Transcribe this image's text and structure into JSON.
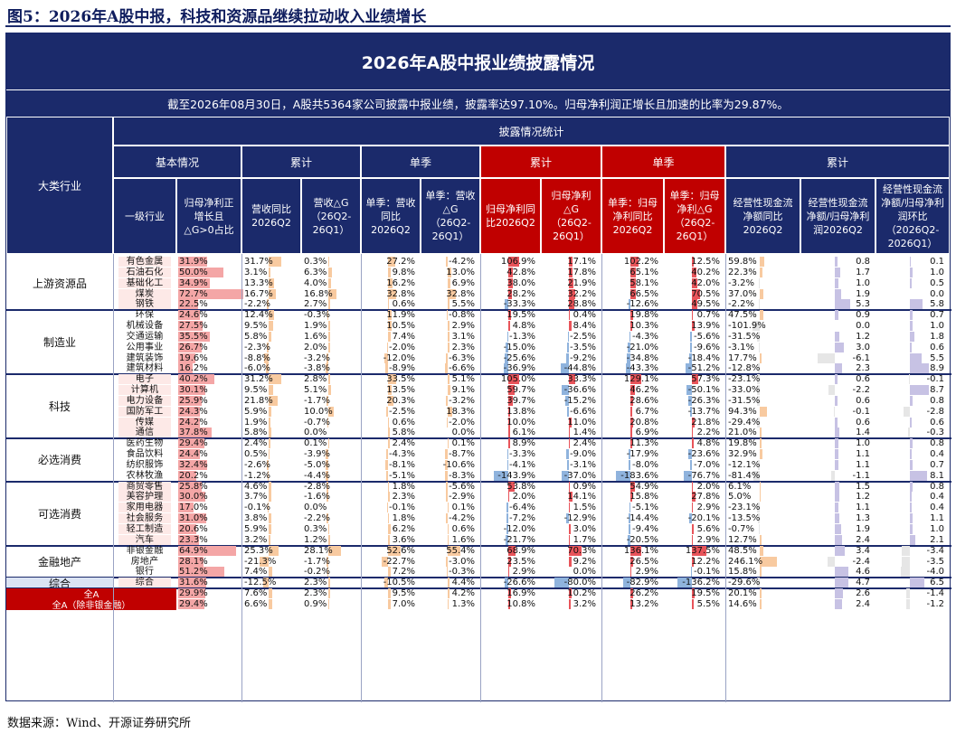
{
  "figure_title": "图5：2026年A股中报，科技和资源品继续拉动收入业绩增长",
  "board_title": "2026年A股中报业绩披露情况",
  "summary": "截至2026年08月30日，A股共5364家公司披露中报业绩，披露率达97.10%。归母净利润正增长且加速的比率为29.87%。",
  "source": "数据来源：Wind、开源证券研究所",
  "headers": {
    "category": "大类行业",
    "stats": "披露情况统计",
    "basic": "基本情况",
    "cum1": "累计",
    "single1": "单季",
    "cum2": "累计",
    "single2": "单季",
    "cum3": "累计",
    "cols": [
      "一级行业",
      "归母净利正增长且△G>0占比",
      "营收同比2026Q2",
      "营收△G（26Q2-26Q1）",
      "单季：营收同比2026Q2",
      "单季：营收△G（26Q2-26Q1）",
      "归母净利同比2026Q2",
      "归母净利△G（26Q2-26Q1）",
      "单季：归母净利同比2026Q2",
      "单季：归母净利△G（26Q2-26Q1）",
      "经营性现金流净额同比2026Q2",
      "经营性现金流净额/归母净利润2026Q2",
      "经营性现金流净额/归母净利润环比（2026Q2-2026Q1）"
    ]
  },
  "chart_data": {
    "type": "table",
    "columns": [
      "一级行业",
      "归母净利正增长且△G>0占比",
      "营收同比2026Q2",
      "营收△G（26Q2-26Q1）",
      "单季：营收同比2026Q2",
      "单季：营收△G（26Q2-26Q1）",
      "归母净利同比2026Q2",
      "归母净利△G（26Q2-26Q1）",
      "单季：归母净利同比2026Q2",
      "单季：归母净利△G（26Q2-26Q1）",
      "经营性现金流净额同比2026Q2",
      "经营性现金流净额/归母净利润2026Q2",
      "经营性现金流净额/归母净利润环比（2026Q2-2026Q1）"
    ],
    "groups": [
      {
        "name": "上游资源品",
        "rows": [
          [
            "有色金属",
            "31.9%",
            "31.7%",
            "0.3%",
            "27.2%",
            "-4.2%",
            "106.9%",
            "17.1%",
            "102.2%",
            "12.5%",
            "59.8%",
            "0.8",
            "0.1"
          ],
          [
            "石油石化",
            "50.0%",
            "3.1%",
            "6.3%",
            "9.8%",
            "13.0%",
            "42.8%",
            "17.8%",
            "65.1%",
            "40.2%",
            "22.3%",
            "1.7",
            "1.0"
          ],
          [
            "基础化工",
            "34.9%",
            "13.3%",
            "4.0%",
            "16.2%",
            "6.9%",
            "38.0%",
            "21.9%",
            "58.1%",
            "42.0%",
            "-3.2%",
            "1.0",
            "0.5"
          ],
          [
            "煤炭",
            "72.7%",
            "16.7%",
            "16.8%",
            "32.8%",
            "32.8%",
            "28.2%",
            "32.2%",
            "66.5%",
            "70.5%",
            "37.0%",
            "1.9",
            "0.0"
          ],
          [
            "钢铁",
            "22.5%",
            "-2.2%",
            "2.7%",
            "0.6%",
            "5.5%",
            "-33.3%",
            "28.8%",
            "-12.6%",
            "49.5%",
            "-2.2%",
            "5.3",
            "5.8"
          ]
        ]
      },
      {
        "name": "制造业",
        "rows": [
          [
            "环保",
            "24.6%",
            "12.4%",
            "-0.3%",
            "11.9%",
            "-0.8%",
            "19.5%",
            "0.4%",
            "19.8%",
            "0.7%",
            "47.5%",
            "0.9",
            "0.7"
          ],
          [
            "机械设备",
            "27.5%",
            "9.5%",
            "1.9%",
            "10.5%",
            "2.9%",
            "4.8%",
            "8.4%",
            "10.3%",
            "13.9%",
            "-101.9%",
            "0.0",
            "1.0"
          ],
          [
            "交通运输",
            "35.5%",
            "5.8%",
            "1.6%",
            "7.4%",
            "3.1%",
            "-1.3%",
            "-2.5%",
            "-4.3%",
            "-5.6%",
            "-31.5%",
            "1.2",
            "1.8"
          ],
          [
            "公用事业",
            "26.7%",
            "-2.3%",
            "2.0%",
            "-2.0%",
            "2.3%",
            "-15.0%",
            "-3.5%",
            "-21.0%",
            "-9.6%",
            "-3.1%",
            "3.0",
            "0.6"
          ],
          [
            "建筑装饰",
            "19.6%",
            "-8.8%",
            "-3.2%",
            "-12.0%",
            "-6.3%",
            "-25.6%",
            "-9.2%",
            "-34.8%",
            "-18.4%",
            "17.7%",
            "-6.1",
            "5.5"
          ],
          [
            "建筑材料",
            "16.2%",
            "-6.0%",
            "-3.8%",
            "-8.9%",
            "-6.6%",
            "-36.9%",
            "-44.8%",
            "-43.3%",
            "-51.2%",
            "-12.8%",
            "2.3",
            "8.9"
          ]
        ]
      },
      {
        "name": "科技",
        "rows": [
          [
            "电子",
            "40.2%",
            "31.2%",
            "2.8%",
            "33.5%",
            "5.1%",
            "105.0%",
            "33.3%",
            "129.1%",
            "57.3%",
            "-23.1%",
            "0.6",
            "-0.1"
          ],
          [
            "计算机",
            "30.1%",
            "9.5%",
            "5.1%",
            "13.5%",
            "9.1%",
            "59.7%",
            "-36.6%",
            "46.2%",
            "-50.1%",
            "-33.0%",
            "-2.2",
            "8.7"
          ],
          [
            "电力设备",
            "25.9%",
            "21.8%",
            "-1.7%",
            "20.3%",
            "-3.2%",
            "39.7%",
            "-15.2%",
            "28.6%",
            "-26.3%",
            "-31.5%",
            "0.6",
            "0.8"
          ],
          [
            "国防军工",
            "24.3%",
            "5.9%",
            "10.0%",
            "-2.5%",
            "18.3%",
            "13.8%",
            "-6.6%",
            "6.7%",
            "-13.7%",
            "94.3%",
            "-0.1",
            "-2.8"
          ],
          [
            "传媒",
            "24.2%",
            "1.9%",
            "-0.7%",
            "0.6%",
            "-2.0%",
            "10.0%",
            "11.0%",
            "20.8%",
            "21.8%",
            "-29.4%",
            "0.6",
            "0.6"
          ],
          [
            "通信",
            "37.8%",
            "5.8%",
            "0.0%",
            "5.8%",
            "0.0%",
            "6.1%",
            "1.4%",
            "6.9%",
            "2.2%",
            "21.0%",
            "1.4",
            "-0.3"
          ]
        ]
      },
      {
        "name": "必选消费",
        "rows": [
          [
            "医药生物",
            "29.4%",
            "2.4%",
            "0.1%",
            "2.4%",
            "0.1%",
            "8.9%",
            "2.4%",
            "11.3%",
            "4.8%",
            "19.8%",
            "1.0",
            "0.8"
          ],
          [
            "食品饮料",
            "24.4%",
            "0.5%",
            "-3.9%",
            "-4.3%",
            "-8.7%",
            "-3.3%",
            "-9.0%",
            "-17.9%",
            "-23.6%",
            "32.9%",
            "1.1",
            "0.4"
          ],
          [
            "纺织服饰",
            "32.4%",
            "-2.6%",
            "-5.0%",
            "-8.1%",
            "-10.6%",
            "-4.1%",
            "-3.1%",
            "-8.0%",
            "-7.0%",
            "-12.1%",
            "1.1",
            "0.7"
          ],
          [
            "农林牧渔",
            "20.2%",
            "-1.2%",
            "-4.4%",
            "-5.1%",
            "-8.3%",
            "-143.9%",
            "-37.0%",
            "-183.6%",
            "-76.7%",
            "-81.4%",
            "-1.1",
            "8.1"
          ]
        ]
      },
      {
        "name": "可选消费",
        "rows": [
          [
            "商贸零售",
            "25.8%",
            "4.6%",
            "-2.8%",
            "1.8%",
            "-5.6%",
            "53.8%",
            "0.9%",
            "54.9%",
            "2.0%",
            "6.1%",
            "1.5",
            "0.8"
          ],
          [
            "美容护理",
            "30.0%",
            "3.7%",
            "-1.6%",
            "2.3%",
            "-2.9%",
            "2.0%",
            "14.1%",
            "15.8%",
            "27.8%",
            "5.0%",
            "1.2",
            "0.4"
          ],
          [
            "家用电器",
            "17.0%",
            "-0.1%",
            "0.0%",
            "-0.1%",
            "0.1%",
            "-6.4%",
            "1.5%",
            "-5.1%",
            "2.9%",
            "-23.1%",
            "1.1",
            "0.4"
          ],
          [
            "社会服务",
            "31.0%",
            "3.8%",
            "-2.2%",
            "1.8%",
            "-4.2%",
            "-7.2%",
            "-12.9%",
            "-14.4%",
            "-20.1%",
            "-13.5%",
            "1.3",
            "1.1"
          ],
          [
            "轻工制造",
            "20.6%",
            "5.9%",
            "0.3%",
            "6.2%",
            "0.6%",
            "-12.0%",
            "3.0%",
            "-9.4%",
            "5.6%",
            "-0.7%",
            "1.9",
            "1.0"
          ],
          [
            "汽车",
            "23.3%",
            "3.2%",
            "1.2%",
            "3.6%",
            "1.6%",
            "-21.7%",
            "1.7%",
            "-20.5%",
            "2.9%",
            "12.7%",
            "2.4",
            "2.1"
          ]
        ]
      },
      {
        "name": "金融地产",
        "rows": [
          [
            "非银金融",
            "64.9%",
            "25.3%",
            "28.1%",
            "52.6%",
            "55.4%",
            "68.9%",
            "70.3%",
            "136.1%",
            "137.5%",
            "48.5%",
            "3.4",
            "-3.4"
          ],
          [
            "房地产",
            "28.1%",
            "-21.3%",
            "-1.7%",
            "-22.7%",
            "-3.0%",
            "23.5%",
            "9.2%",
            "26.5%",
            "12.2%",
            "246.1%",
            "-2.4",
            "-3.5"
          ],
          [
            "银行",
            "51.2%",
            "7.4%",
            "-0.2%",
            "7.2%",
            "-0.3%",
            "2.9%",
            "0.0%",
            "2.9%",
            "-0.1%",
            "15.8%",
            "4.6",
            "-4.0"
          ]
        ]
      },
      {
        "name": "综合",
        "rows": [
          [
            "综合",
            "31.6%",
            "-12.5%",
            "2.3%",
            "-10.5%",
            "4.4%",
            "-26.6%",
            "-80.0%",
            "-82.9%",
            "-136.2%",
            "-29.6%",
            "4.7",
            "6.5"
          ]
        ]
      }
    ],
    "totals": [
      [
        "全A",
        "29.9%",
        "7.6%",
        "2.3%",
        "9.5%",
        "4.2%",
        "16.9%",
        "10.2%",
        "26.2%",
        "19.5%",
        "20.1%",
        "2.6",
        "-1.4"
      ],
      [
        "全A（除非银金融）",
        "29.4%",
        "6.6%",
        "0.9%",
        "7.0%",
        "1.3%",
        "10.8%",
        "3.2%",
        "13.2%",
        "5.5%",
        "14.6%",
        "2.4",
        "-1.2"
      ]
    ],
    "bar_colors": {
      "share": "#f4a6a6",
      "revenue": "#f8caa0",
      "profit": "#e8545a",
      "profit_neg": "#8fb3dd",
      "cashflow": "#f8caa0",
      "ratio": "#c7c2e4"
    }
  }
}
